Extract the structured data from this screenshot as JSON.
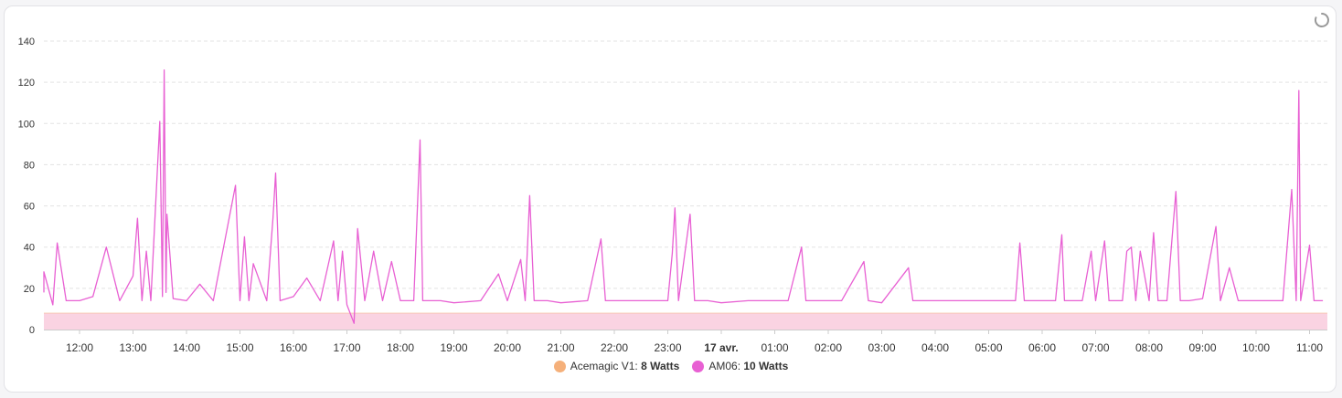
{
  "chart_data": {
    "type": "line",
    "title": "",
    "xlabel": "",
    "ylabel": "",
    "ylim": [
      0,
      140
    ],
    "yticks": [
      0,
      20,
      40,
      60,
      80,
      100,
      120,
      140
    ],
    "xticks": [
      {
        "label": "12:00",
        "bold": false
      },
      {
        "label": "13:00",
        "bold": false
      },
      {
        "label": "14:00",
        "bold": false
      },
      {
        "label": "15:00",
        "bold": false
      },
      {
        "label": "16:00",
        "bold": false
      },
      {
        "label": "17:00",
        "bold": false
      },
      {
        "label": "18:00",
        "bold": false
      },
      {
        "label": "19:00",
        "bold": false
      },
      {
        "label": "20:00",
        "bold": false
      },
      {
        "label": "21:00",
        "bold": false
      },
      {
        "label": "22:00",
        "bold": false
      },
      {
        "label": "23:00",
        "bold": false
      },
      {
        "label": "17 avr.",
        "bold": true
      },
      {
        "label": "01:00",
        "bold": false
      },
      {
        "label": "02:00",
        "bold": false
      },
      {
        "label": "03:00",
        "bold": false
      },
      {
        "label": "04:00",
        "bold": false
      },
      {
        "label": "05:00",
        "bold": false
      },
      {
        "label": "06:00",
        "bold": false
      },
      {
        "label": "07:00",
        "bold": false
      },
      {
        "label": "08:00",
        "bold": false
      },
      {
        "label": "09:00",
        "bold": false
      },
      {
        "label": "10:00",
        "bold": false
      },
      {
        "label": "11:00",
        "bold": false
      }
    ],
    "grid": true,
    "legend_position": "bottom-center",
    "series": [
      {
        "name": "Acemagic V1",
        "legend_value": "8 Watts",
        "color": "#f5b07a",
        "fill_color": "#fad3e2",
        "baseline": 8
      },
      {
        "name": "AM06",
        "legend_value": "10 Watts",
        "color": "#e860d3",
        "points": [
          [
            "11:20",
            18
          ],
          [
            "11:30",
            12
          ],
          [
            "11:35",
            42
          ],
          [
            "11:45",
            14
          ],
          [
            "12:00",
            14
          ],
          [
            "12:15",
            16
          ],
          [
            "12:30",
            40
          ],
          [
            "12:45",
            14
          ],
          [
            "13:00",
            26
          ],
          [
            "13:05",
            54
          ],
          [
            "13:10",
            14
          ],
          [
            "13:15",
            38
          ],
          [
            "13:20",
            14
          ],
          [
            "13:30",
            101
          ],
          [
            "13:33",
            16
          ],
          [
            "13:35",
            126
          ],
          [
            "13:37",
            18
          ],
          [
            "13:38",
            56
          ],
          [
            "13:45",
            15
          ],
          [
            "14:00",
            14
          ],
          [
            "14:15",
            22
          ],
          [
            "14:30",
            14
          ],
          [
            "14:55",
            70
          ],
          [
            "15:00",
            14
          ],
          [
            "15:05",
            45
          ],
          [
            "15:10",
            14
          ],
          [
            "15:15",
            32
          ],
          [
            "15:30",
            14
          ],
          [
            "15:37",
            54
          ],
          [
            "15:40",
            76
          ],
          [
            "15:45",
            14
          ],
          [
            "16:00",
            16
          ],
          [
            "16:15",
            25
          ],
          [
            "16:30",
            14
          ],
          [
            "16:45",
            43
          ],
          [
            "16:50",
            14
          ],
          [
            "16:55",
            38
          ],
          [
            "17:00",
            12
          ],
          [
            "17:08",
            3
          ],
          [
            "17:12",
            49
          ],
          [
            "17:20",
            14
          ],
          [
            "17:30",
            38
          ],
          [
            "17:40",
            14
          ],
          [
            "17:50",
            33
          ],
          [
            "18:00",
            14
          ],
          [
            "18:15",
            14
          ],
          [
            "18:22",
            92
          ],
          [
            "18:25",
            14
          ],
          [
            "18:45",
            14
          ],
          [
            "19:00",
            13
          ],
          [
            "19:30",
            14
          ],
          [
            "19:50",
            27
          ],
          [
            "20:00",
            14
          ],
          [
            "20:15",
            34
          ],
          [
            "20:20",
            14
          ],
          [
            "20:25",
            65
          ],
          [
            "20:30",
            14
          ],
          [
            "20:45",
            14
          ],
          [
            "21:00",
            13
          ],
          [
            "21:30",
            14
          ],
          [
            "21:45",
            44
          ],
          [
            "21:50",
            14
          ],
          [
            "22:15",
            14
          ],
          [
            "22:30",
            14
          ],
          [
            "22:45",
            14
          ],
          [
            "23:00",
            14
          ],
          [
            "23:05",
            37
          ],
          [
            "23:08",
            59
          ],
          [
            "23:12",
            14
          ],
          [
            "23:25",
            56
          ],
          [
            "23:30",
            14
          ],
          [
            "23:45",
            14
          ],
          [
            "00:00",
            13
          ],
          [
            "00:30",
            14
          ],
          [
            "00:45",
            14
          ],
          [
            "01:00",
            14
          ],
          [
            "01:15",
            14
          ],
          [
            "01:30",
            40
          ],
          [
            "01:35",
            14
          ],
          [
            "01:45",
            14
          ],
          [
            "02:00",
            14
          ],
          [
            "02:15",
            14
          ],
          [
            "02:40",
            33
          ],
          [
            "02:45",
            14
          ],
          [
            "03:00",
            13
          ],
          [
            "03:30",
            30
          ],
          [
            "03:35",
            14
          ],
          [
            "04:00",
            14
          ],
          [
            "04:30",
            14
          ],
          [
            "05:00",
            14
          ],
          [
            "05:30",
            14
          ],
          [
            "05:35",
            42
          ],
          [
            "05:40",
            14
          ],
          [
            "06:00",
            14
          ],
          [
            "06:15",
            14
          ],
          [
            "06:22",
            46
          ],
          [
            "06:25",
            14
          ],
          [
            "06:45",
            14
          ],
          [
            "06:55",
            38
          ],
          [
            "07:00",
            14
          ],
          [
            "07:10",
            43
          ],
          [
            "07:15",
            14
          ],
          [
            "07:30",
            14
          ],
          [
            "07:35",
            38
          ],
          [
            "07:40",
            40
          ],
          [
            "07:45",
            14
          ],
          [
            "07:50",
            38
          ],
          [
            "08:00",
            14
          ],
          [
            "08:05",
            47
          ],
          [
            "08:10",
            14
          ],
          [
            "08:20",
            14
          ],
          [
            "08:30",
            67
          ],
          [
            "08:35",
            14
          ],
          [
            "08:45",
            14
          ],
          [
            "09:00",
            15
          ],
          [
            "09:15",
            50
          ],
          [
            "09:20",
            14
          ],
          [
            "09:30",
            30
          ],
          [
            "09:40",
            14
          ],
          [
            "10:00",
            14
          ],
          [
            "10:15",
            14
          ],
          [
            "10:30",
            14
          ],
          [
            "10:40",
            68
          ],
          [
            "10:45",
            14
          ],
          [
            "10:48",
            116
          ],
          [
            "10:50",
            14
          ],
          [
            "11:00",
            41
          ],
          [
            "11:05",
            14
          ],
          [
            "11:15",
            14
          ],
          [
            "11:20",
            28
          ]
        ]
      }
    ]
  }
}
